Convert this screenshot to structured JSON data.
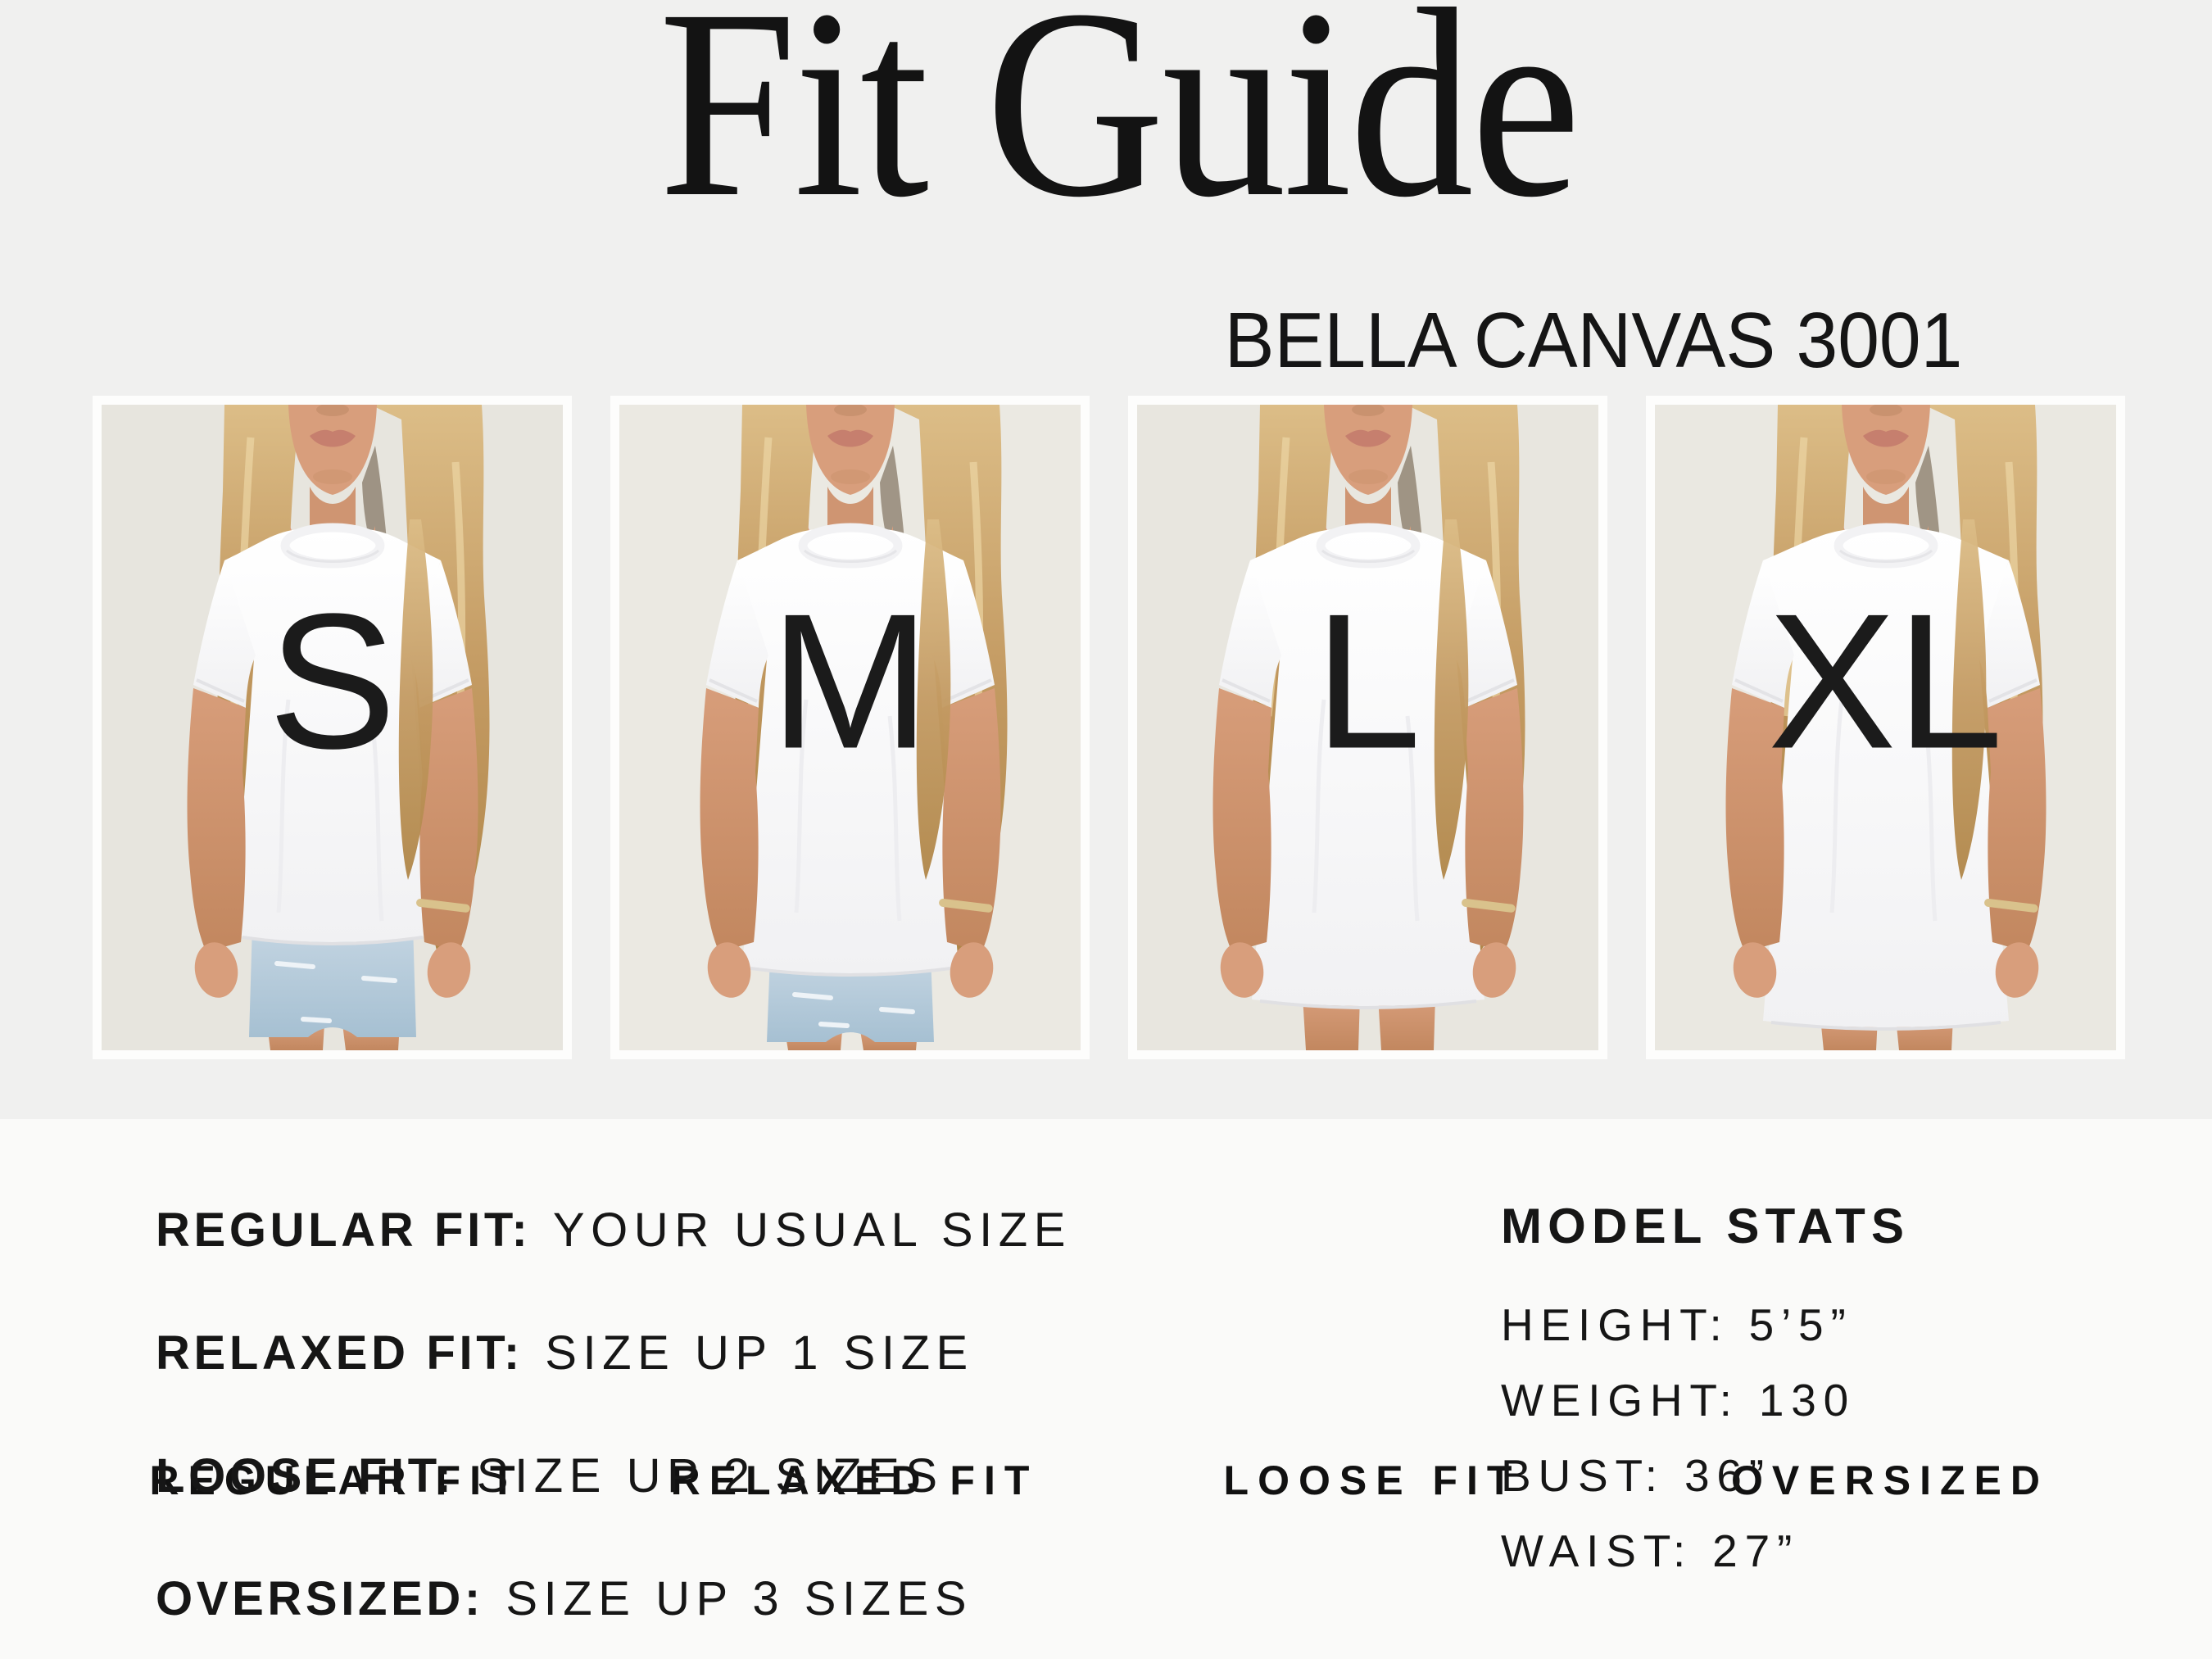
{
  "header": {
    "title": "Fit Guide",
    "subtitle": "BELLA CANVAS 3001"
  },
  "panels": [
    {
      "size_letter": "S",
      "fit_label": "REGULAR FIT"
    },
    {
      "size_letter": "M",
      "fit_label": "RELAXED FIT"
    },
    {
      "size_letter": "L",
      "fit_label": "LOOSE FIT"
    },
    {
      "size_letter": "XL",
      "fit_label": "OVERSIZED"
    }
  ],
  "fit_rules": [
    {
      "label": "REGULAR FIT:",
      "value": "YOUR USUAL SIZE"
    },
    {
      "label": "RELAXED FIT:",
      "value": "SIZE UP 1 SIZE"
    },
    {
      "label": "LOOSE FIT:",
      "value": "SIZE UP 2 SIZES"
    },
    {
      "label": "OVERSIZED:",
      "value": "SIZE UP 3 SIZES"
    }
  ],
  "model_stats": {
    "heading": "MODEL STATS",
    "lines": [
      "HEIGHT: 5’5”",
      "WEIGHT: 130",
      "BUST: 36”",
      "WAIST: 27”"
    ]
  },
  "colors": {
    "top_bg": "#f0f0ef",
    "bottom_bg": "#fafaf9",
    "frame": "#fdfdfc",
    "text": "#161616"
  }
}
